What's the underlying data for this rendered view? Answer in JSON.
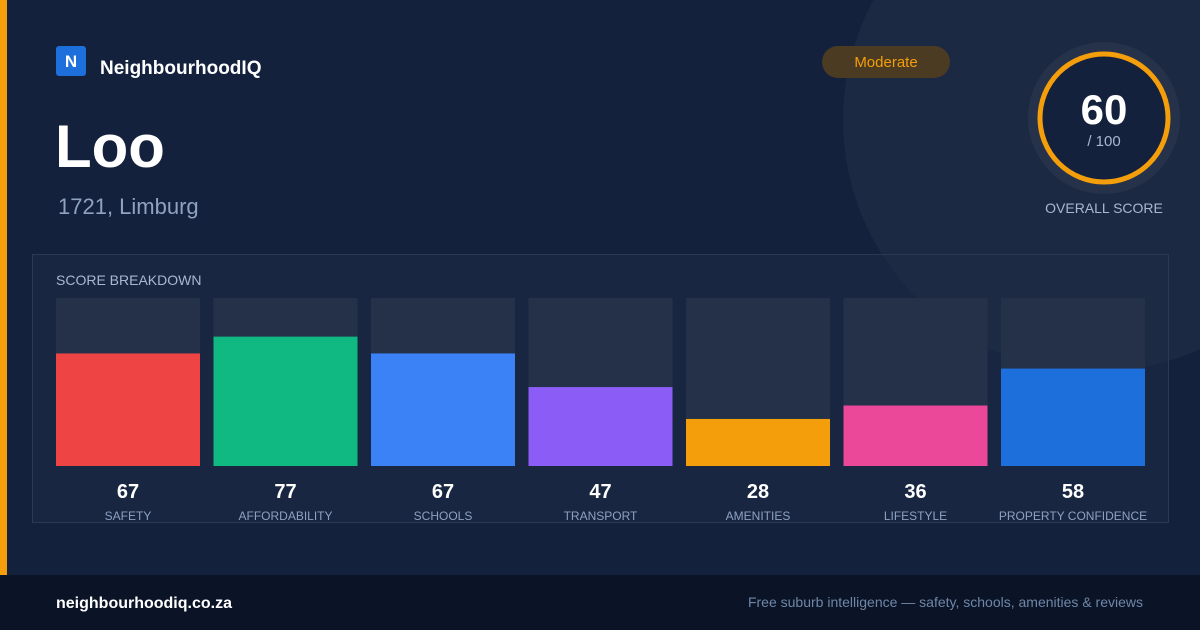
{
  "brand": {
    "logo_letter": "N",
    "name": "NeighbourhoodIQ"
  },
  "header": {
    "title": "Loo",
    "subtitle": "1721, Limburg",
    "badge": "Moderate"
  },
  "score": {
    "value": 60,
    "max_label": "/ 100",
    "label": "OVERALL SCORE"
  },
  "chart_data": {
    "type": "bar",
    "title": "SCORE BREAKDOWN",
    "categories": [
      "SAFETY",
      "AFFORDABILITY",
      "SCHOOLS",
      "TRANSPORT",
      "AMENITIES",
      "LIFESTYLE",
      "PROPERTY CONFIDENCE"
    ],
    "values": [
      67,
      77,
      67,
      47,
      28,
      36,
      58
    ],
    "colors": [
      "#ef4444",
      "#10b981",
      "#3b82f6",
      "#8b5cf6",
      "#f59e0b",
      "#ec4899",
      "#1d6fdc"
    ],
    "ylim": [
      0,
      100
    ]
  },
  "footer": {
    "site": "neighbourhoodiq.co.za",
    "tagline": "Free suburb intelligence — safety, schools, amenities & reviews"
  }
}
